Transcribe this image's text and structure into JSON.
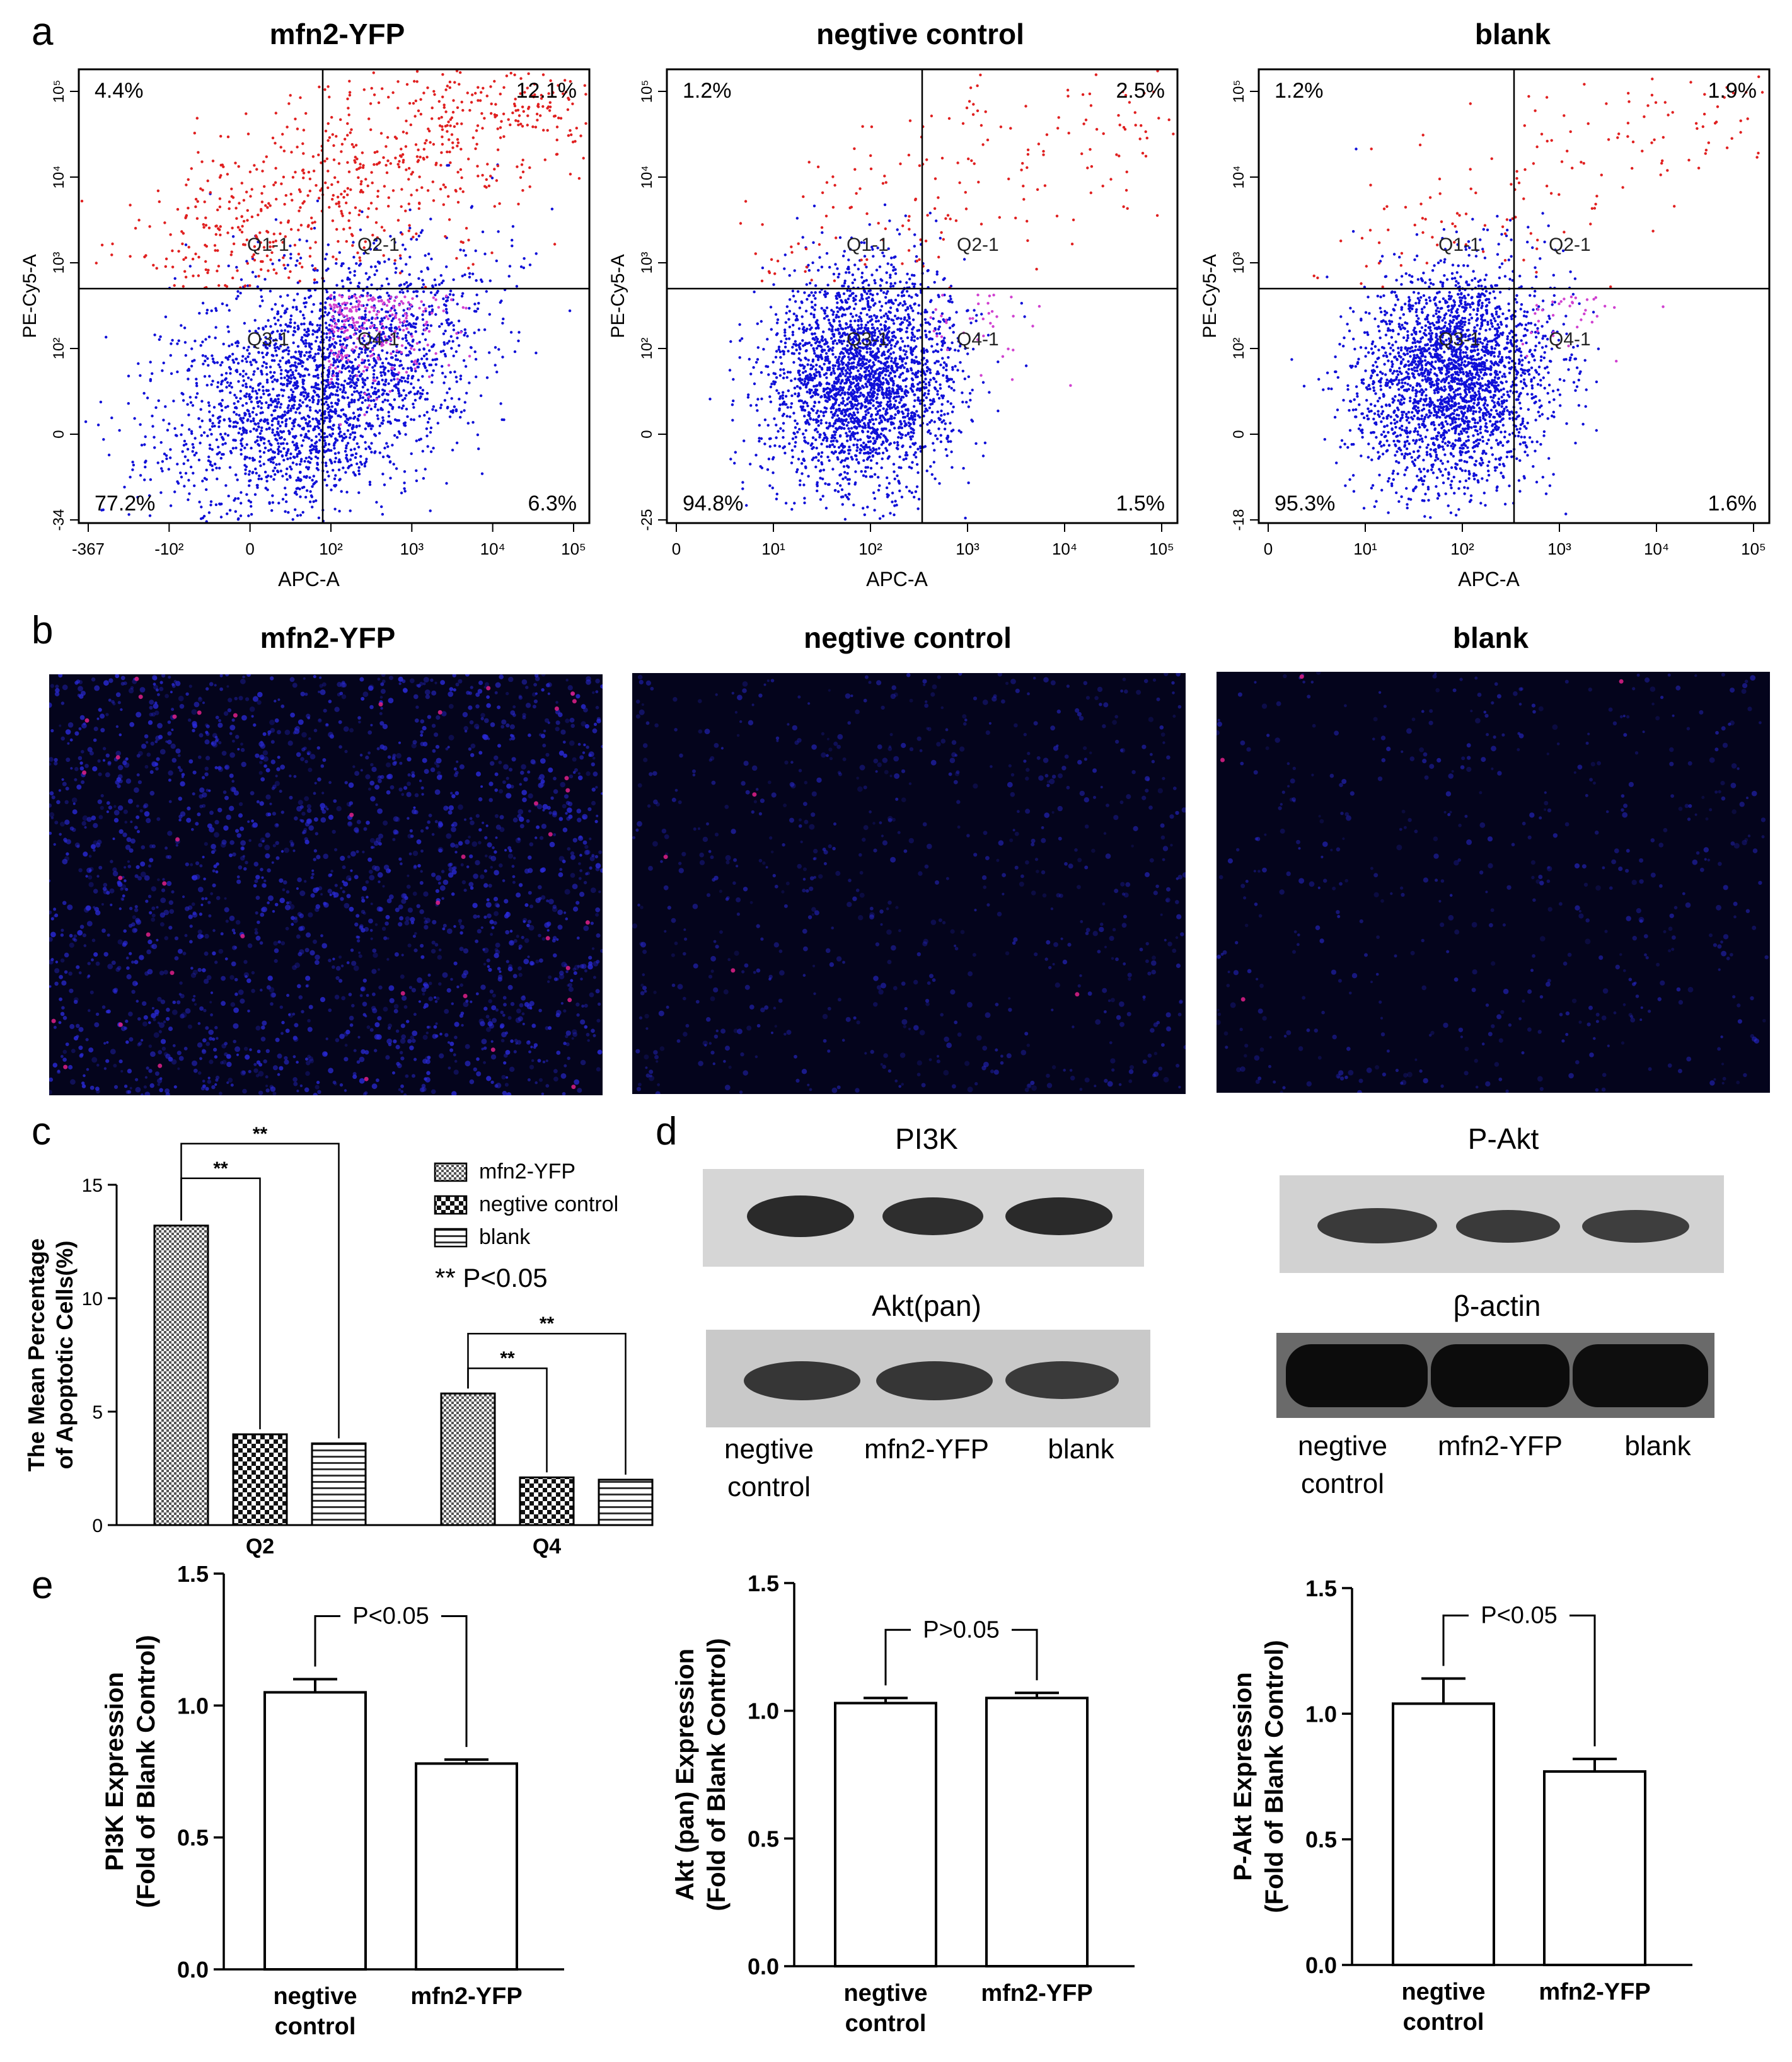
{
  "panel_labels": {
    "a": "a",
    "b": "b",
    "c": "c",
    "d": "d",
    "e": "e"
  },
  "flow": [
    {
      "title": "mfn2-YFP",
      "q_tl": "4.4%",
      "q_tr": "12.1%",
      "q_bl": "77.2%",
      "q_br": "6.3%",
      "gates": [
        "Q1-1",
        "Q2-1",
        "Q3-1",
        "Q4-1"
      ],
      "xlabel": "APC-A",
      "ylabel": "PE-Cy5-A",
      "xticks": [
        "-367",
        "-10²",
        "0",
        "10²",
        "10³",
        "10⁴",
        "10⁵"
      ],
      "yticks": [
        "-34",
        "0",
        "10²",
        "10³",
        "10⁴",
        "10⁵"
      ],
      "red_density": 1.0,
      "magenta_density": 1.0
    },
    {
      "title": "negtive control",
      "q_tl": "1.2%",
      "q_tr": "2.5%",
      "q_bl": "94.8%",
      "q_br": "1.5%",
      "gates": [
        "Q1-1",
        "Q2-1",
        "Q3-1",
        "Q4-1"
      ],
      "xlabel": "APC-A",
      "ylabel": "PE-Cy5-A",
      "xticks": [
        "0",
        "10¹",
        "10²",
        "10³",
        "10⁴",
        "10⁵"
      ],
      "yticks": [
        "-25",
        "0",
        "10²",
        "10³",
        "10⁴",
        "10⁵"
      ],
      "red_density": 0.25,
      "magenta_density": 0.15
    },
    {
      "title": "blank",
      "q_tl": "1.2%",
      "q_tr": "1.9%",
      "q_bl": "95.3%",
      "q_br": "1.6%",
      "gates": [
        "Q1-1",
        "Q2-1",
        "Q3-1",
        "Q4-1"
      ],
      "xlabel": "APC-A",
      "ylabel": "PE-Cy5-A",
      "xticks": [
        "0",
        "10¹",
        "10²",
        "10³",
        "10⁴",
        "10⁵"
      ],
      "yticks": [
        "-18",
        "0",
        "10²",
        "10³",
        "10⁴",
        "10⁵"
      ],
      "red_density": 0.2,
      "magenta_density": 0.15
    }
  ],
  "fluorescence": [
    {
      "title": "mfn2-YFP"
    },
    {
      "title": "negtive control"
    },
    {
      "title": "blank"
    }
  ],
  "colors": {
    "dot_blue": "#1010d8",
    "dot_red": "#e02020",
    "dot_magenta": "#d040d0",
    "image_bg": "#04041c"
  },
  "chart_data": [
    {
      "type": "bar",
      "panel": "c",
      "ylabel": "The Mean Percentage of Apoptotic Cells(%)",
      "ylabel_lines": [
        "The Mean Percentage",
        "of Apoptotic Cells(%)"
      ],
      "categories": [
        "Q2",
        "Q4"
      ],
      "series": [
        {
          "name": "mfn2-YFP",
          "values": [
            13.2,
            5.8
          ]
        },
        {
          "name": "negtive control",
          "values": [
            4.0,
            2.1
          ]
        },
        {
          "name": "blank",
          "values": [
            3.6,
            2.0
          ]
        }
      ],
      "ylim": [
        0,
        15
      ],
      "yticks": [
        "0",
        "5",
        "10",
        "15"
      ],
      "annotation": "** P<0.05",
      "sig_marker": "**",
      "legend": "top-right"
    },
    {
      "type": "bar",
      "panel": "e",
      "ylabel_lines": [
        "PI3K Expression",
        "(Fold of Blank Control)"
      ],
      "categories": [
        "negtive control",
        "mfn2-YFP"
      ],
      "category_lines": [
        [
          "negtive",
          "control"
        ],
        [
          "mfn2-YFP"
        ]
      ],
      "values": [
        1.05,
        0.78
      ],
      "errors": [
        0.05,
        0.015
      ],
      "ylim": [
        0,
        1.5
      ],
      "yticks": [
        "0.0",
        "0.5",
        "1.0",
        "1.5"
      ],
      "significance": "P<0.05"
    },
    {
      "type": "bar",
      "panel": "e",
      "ylabel_lines": [
        "Akt (pan) Expression",
        "(Fold of Blank Control)"
      ],
      "categories": [
        "negtive control",
        "mfn2-YFP"
      ],
      "category_lines": [
        [
          "negtive",
          "control"
        ],
        [
          "mfn2-YFP"
        ]
      ],
      "values": [
        1.03,
        1.05
      ],
      "errors": [
        0.02,
        0.02
      ],
      "ylim": [
        0,
        1.5
      ],
      "yticks": [
        "0.0",
        "0.5",
        "1.0",
        "1.5"
      ],
      "significance": "P>0.05"
    },
    {
      "type": "bar",
      "panel": "e",
      "ylabel_lines": [
        "P-Akt Expression",
        "(Fold of Blank Control)"
      ],
      "categories": [
        "negtive control",
        "mfn2-YFP"
      ],
      "category_lines": [
        [
          "negtive",
          "control"
        ],
        [
          "mfn2-YFP"
        ]
      ],
      "values": [
        1.04,
        0.77
      ],
      "errors": [
        0.1,
        0.05
      ],
      "ylim": [
        0,
        1.5
      ],
      "yticks": [
        "0.0",
        "0.5",
        "1.0",
        "1.5"
      ],
      "significance": "P<0.05"
    }
  ],
  "western": {
    "pi3k": {
      "title": "PI3K"
    },
    "akt": {
      "title": "Akt(pan)"
    },
    "pakt": {
      "title": "P-Akt"
    },
    "actin": {
      "title": "β-actin"
    },
    "lanes_left": [
      "negtive control",
      "mfn2-YFP",
      "blank"
    ],
    "lanes_right": [
      "negtive control",
      "mfn2-YFP",
      "blank"
    ]
  }
}
